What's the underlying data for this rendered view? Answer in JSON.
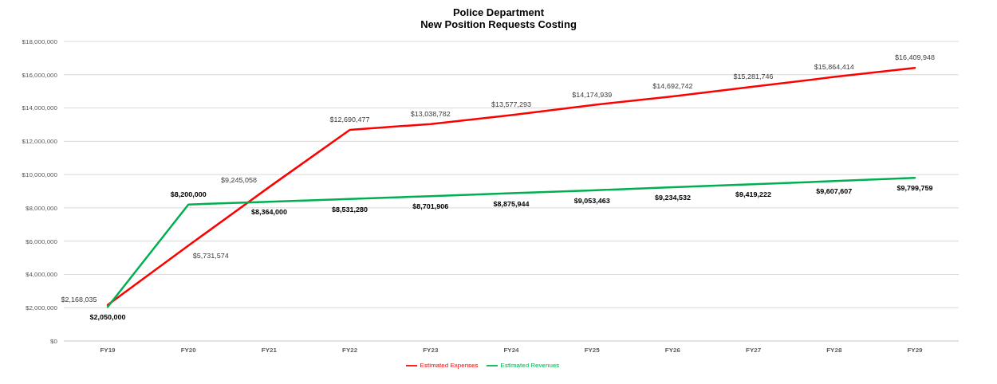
{
  "chart_data": {
    "type": "line",
    "title": "Police Department",
    "subtitle": "New Position Requests Costing",
    "categories": [
      "FY19",
      "FY20",
      "FY21",
      "FY22",
      "FY23",
      "FY24",
      "FY25",
      "FY26",
      "FY27",
      "FY28",
      "FY29"
    ],
    "series": [
      {
        "name": "Estimated Expenses",
        "color": "#ff0000",
        "values": [
          2168035,
          5731574,
          9245058,
          12690477,
          13038782,
          13577293,
          14174939,
          14692742,
          15281746,
          15864414,
          16409948
        ],
        "value_labels": [
          "$2,168,035",
          "$5,731,574",
          "$9,245,058",
          "$12,690,477",
          "$13,038,782",
          "$13,577,293",
          "$14,174,939",
          "$14,692,742",
          "$15,281,746",
          "$15,864,414",
          "$16,409,948"
        ]
      },
      {
        "name": "Estimated Revenues",
        "color": "#00b050",
        "values": [
          2050000,
          8200000,
          8364000,
          8531280,
          8701906,
          8875944,
          9053463,
          9234532,
          9419222,
          9607607,
          9799759
        ],
        "value_labels": [
          "$2,050,000",
          "$8,200,000",
          "$8,364,000",
          "$8,531,280",
          "$8,701,906",
          "$8,875,944",
          "$9,053,463",
          "$9,234,532",
          "$9,419,222",
          "$9,607,607",
          "$9,799,759"
        ]
      }
    ],
    "ylim": [
      0,
      18000000
    ],
    "yticks": [
      {
        "value": 0,
        "label": "$0"
      },
      {
        "value": 2000000,
        "label": "$2,000,000"
      },
      {
        "value": 4000000,
        "label": "$4,000,000"
      },
      {
        "value": 6000000,
        "label": "$6,000,000"
      },
      {
        "value": 8000000,
        "label": "$8,000,000"
      },
      {
        "value": 10000000,
        "label": "$10,000,000"
      },
      {
        "value": 12000000,
        "label": "$12,000,000"
      },
      {
        "value": 14000000,
        "label": "$14,000,000"
      },
      {
        "value": 16000000,
        "label": "$16,000,000"
      },
      {
        "value": 18000000,
        "label": "$18,000,000"
      }
    ],
    "grid": "y",
    "legend": "bottom",
    "marker": "none",
    "line_style": "solid"
  }
}
